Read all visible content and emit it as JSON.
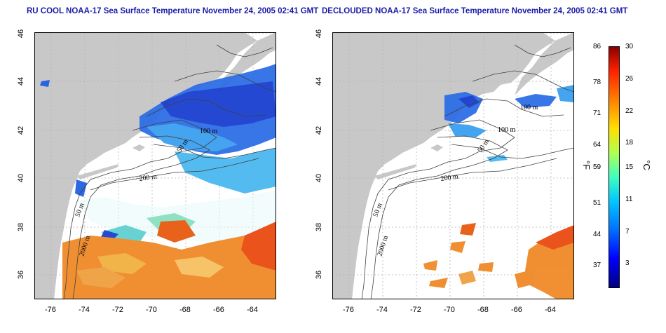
{
  "titles": {
    "left": "RU COOL NOAA-17 Sea Surface Temperature November 24, 2005 02:41 GMT",
    "right": "DECLOUDED NOAA-17 Sea Surface Temperature November 24, 2005 02:41 GMT"
  },
  "axes": {
    "x_ticks": [
      "-76",
      "-74",
      "-72",
      "-70",
      "-68",
      "-66",
      "-64"
    ],
    "y_ticks": [
      "46",
      "44",
      "42",
      "40",
      "38",
      "36"
    ]
  },
  "contour_labels": {
    "left": [
      "100 m",
      "50 m",
      "200 m",
      "50 m",
      "2000 m"
    ],
    "right": [
      "100 m",
      "100 m",
      "50 m",
      "200 m",
      "50 m",
      "2000 m"
    ]
  },
  "colorbar": {
    "fahrenheit_unit": "°F",
    "celsius_unit": "°C",
    "fahrenheit_ticks": [
      "86",
      "78",
      "71",
      "64",
      "59",
      "51",
      "44",
      "37"
    ],
    "celsius_ticks": [
      "30",
      "26",
      "22",
      "18",
      "15",
      "11",
      "7",
      "3"
    ]
  },
  "colors": {
    "land": "#c8c8c8",
    "title": "#1a1aa8",
    "grid": "#b4b4b4",
    "contour": "#404040"
  }
}
